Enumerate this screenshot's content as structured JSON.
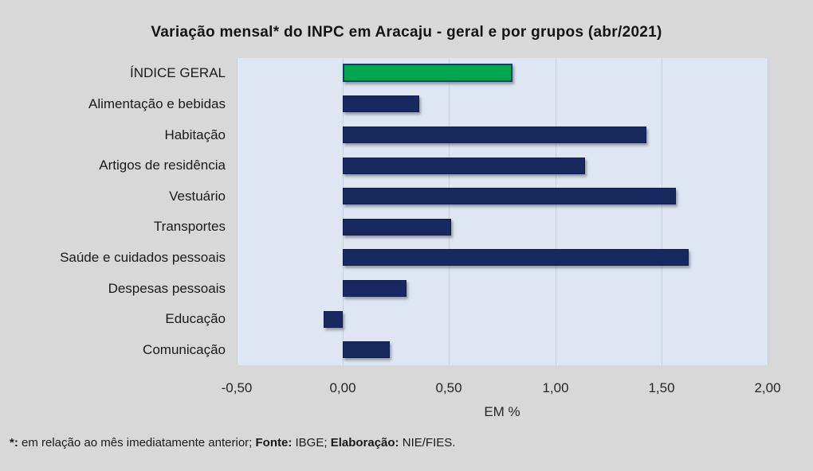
{
  "title": "Variação  mensal*  do INPC em Aracaju  - geral e por grupos  (abr/2021)",
  "chart_data": {
    "type": "bar",
    "orientation": "horizontal",
    "title": "Variação mensal* do INPC em Aracaju - geral e por grupos (abr/2021)",
    "categories": [
      "ÍNDICE GERAL",
      "Alimentação e bebidas",
      "Habitação",
      "Artigos de residência",
      "Vestuário",
      "Transportes",
      "Saúde e cuidados pessoais",
      "Despesas pessoais",
      "Educação",
      "Comunicação"
    ],
    "values": [
      0.8,
      0.36,
      1.43,
      1.14,
      1.57,
      0.51,
      1.63,
      0.3,
      -0.09,
      0.22
    ],
    "highlight_index": 0,
    "highlight_color": "#00a64f",
    "bar_color": "#17295e",
    "plot_background": "#dde6f2",
    "canvas_background": "#d8d8d8",
    "grid": true,
    "xlabel": "EM %",
    "xlim": [
      -0.5,
      2.0
    ],
    "xticks": [
      -0.5,
      0.0,
      0.5,
      1.0,
      1.5,
      2.0
    ],
    "xtick_labels": [
      "-0,50",
      "0,00",
      "0,50",
      "1,00",
      "1,50",
      "2,00"
    ]
  },
  "footer": {
    "asterisk_label": "*:",
    "note_text": " em relação ao mês imediatamente anterior; ",
    "fonte_label": "Fonte:",
    "fonte_value": " IBGE; ",
    "elaboracao_label": "Elaboração:",
    "elaboracao_value": " NIE/FIES."
  }
}
